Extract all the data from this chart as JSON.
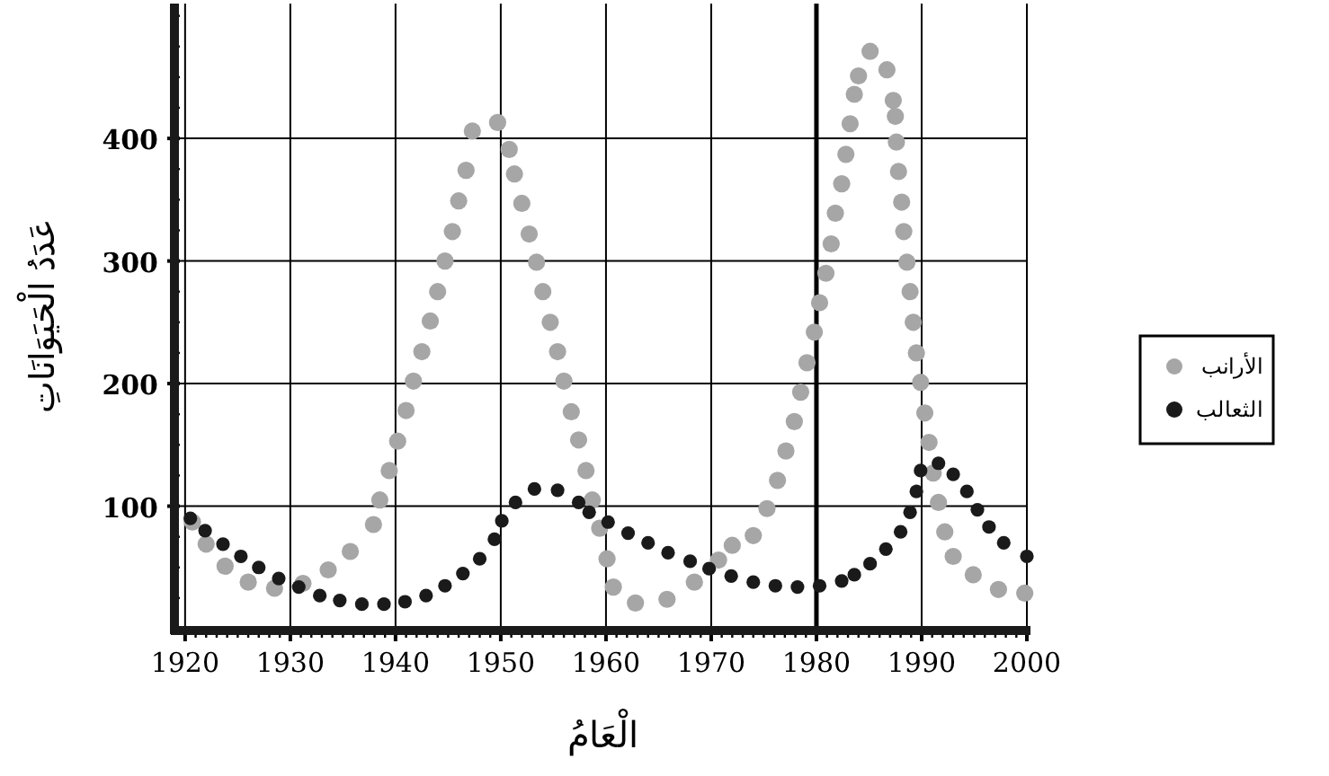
{
  "chart_data": {
    "type": "scatter",
    "xlabel": "الْعَامُ",
    "ylabel": "عَدَدُ الْحَيَوَانَاتِ",
    "xlim": [
      1919.5,
      2000
    ],
    "ylim": [
      0,
      510
    ],
    "grid": true,
    "legend": "right",
    "marker": "circle",
    "xticks": [
      1920,
      {
        "value": 1921,
        "label": null
      },
      {
        "value": 1922,
        "label": null
      },
      {
        "value": 1923,
        "label": null
      },
      {
        "value": 1924,
        "label": null
      },
      {
        "value": 1925,
        "label": null
      },
      {
        "value": 1926,
        "label": null
      },
      {
        "value": 1927,
        "label": null
      },
      {
        "value": 1928,
        "label": null
      },
      {
        "value": 1929,
        "label": null
      },
      1930,
      {
        "value": 1931,
        "label": null
      },
      {
        "value": 1932,
        "label": null
      },
      {
        "value": 1933,
        "label": null
      },
      {
        "value": 1934,
        "label": null
      },
      {
        "value": 1935,
        "label": null
      },
      {
        "value": 1936,
        "label": null
      },
      {
        "value": 1937,
        "label": null
      },
      {
        "value": 1938,
        "label": null
      },
      {
        "value": 1939,
        "label": null
      },
      1940,
      {
        "value": 1941,
        "label": null
      },
      {
        "value": 1942,
        "label": null
      },
      {
        "value": 1943,
        "label": null
      },
      {
        "value": 1944,
        "label": null
      },
      {
        "value": 1945,
        "label": null
      },
      {
        "value": 1946,
        "label": null
      },
      {
        "value": 1947,
        "label": null
      },
      {
        "value": 1948,
        "label": null
      },
      {
        "value": 1949,
        "label": null
      },
      1950,
      {
        "value": 1951,
        "label": null
      },
      {
        "value": 1952,
        "label": null
      },
      {
        "value": 1953,
        "label": null
      },
      {
        "value": 1954,
        "label": null
      },
      {
        "value": 1955,
        "label": null
      },
      {
        "value": 1956,
        "label": null
      },
      {
        "value": 1957,
        "label": null
      },
      {
        "value": 1958,
        "label": null
      },
      {
        "value": 1959,
        "label": null
      },
      1960,
      {
        "value": 1961,
        "label": null
      },
      {
        "value": 1962,
        "label": null
      },
      {
        "value": 1963,
        "label": null
      },
      {
        "value": 1964,
        "label": null
      },
      {
        "value": 1965,
        "label": null
      },
      {
        "value": 1966,
        "label": null
      },
      {
        "value": 1967,
        "label": null
      },
      {
        "value": 1968,
        "label": null
      },
      {
        "value": 1969,
        "label": null
      },
      1970,
      {
        "value": 1971,
        "label": null
      },
      {
        "value": 1972,
        "label": null
      },
      {
        "value": 1973,
        "label": null
      },
      {
        "value": 1974,
        "label": null
      },
      {
        "value": 1975,
        "label": null
      },
      {
        "value": 1976,
        "label": null
      },
      {
        "value": 1977,
        "label": null
      },
      {
        "value": 1978,
        "label": null
      },
      {
        "value": 1979,
        "label": null
      },
      1980,
      {
        "value": 1981,
        "label": null
      },
      {
        "value": 1982,
        "label": null
      },
      {
        "value": 1983,
        "label": null
      },
      {
        "value": 1984,
        "label": null
      },
      {
        "value": 1985,
        "label": null
      },
      {
        "value": 1986,
        "label": null
      },
      {
        "value": 1987,
        "label": null
      },
      {
        "value": 1988,
        "label": null
      },
      {
        "value": 1989,
        "label": null
      },
      1990,
      {
        "value": 1991,
        "label": null
      },
      {
        "value": 1992,
        "label": null
      },
      {
        "value": 1993,
        "label": null
      },
      {
        "value": 1994,
        "label": null
      },
      {
        "value": 1995,
        "label": null
      },
      {
        "value": 1996,
        "label": null
      },
      {
        "value": 1997,
        "label": null
      },
      {
        "value": 1998,
        "label": null
      },
      {
        "value": 1999,
        "label": null
      },
      2000
    ],
    "yticks": [
      {
        "value": 25,
        "label": null
      },
      {
        "value": 50,
        "label": null
      },
      {
        "value": 75,
        "label": null
      },
      100,
      {
        "value": 125,
        "label": null
      },
      {
        "value": 150,
        "label": null
      },
      {
        "value": 175,
        "label": null
      },
      200,
      {
        "value": 225,
        "label": null
      },
      {
        "value": 250,
        "label": null
      },
      {
        "value": 275,
        "label": null
      },
      300,
      {
        "value": 325,
        "label": null
      },
      {
        "value": 350,
        "label": null
      },
      {
        "value": 375,
        "label": null
      },
      400,
      {
        "value": 425,
        "label": null
      },
      {
        "value": 450,
        "label": null
      },
      {
        "value": 475,
        "label": null
      },
      {
        "value": 500,
        "label": null
      }
    ],
    "ref_lines": [
      {
        "axis": "x",
        "value": 1980,
        "color": "#000000"
      }
    ],
    "series": [
      {
        "name": "الأرانب",
        "color": "#a6a6a6",
        "x": [
          1920.7,
          1922,
          1923.8,
          1926,
          1928.5,
          1931.2,
          1933.6,
          1935.7,
          1937.9,
          1938.5,
          1939.4,
          1940.2,
          1941,
          1941.7,
          1942.5,
          1943.3,
          1944,
          1944.7,
          1945.4,
          1946,
          1946.7,
          1947.3,
          1949.7,
          1950.8,
          1951.3,
          1952,
          1952.7,
          1953.4,
          1954,
          1954.7,
          1955.4,
          1956,
          1956.7,
          1957.4,
          1958.1,
          1958.7,
          1959.4,
          1960.1,
          1960.7,
          1962.8,
          1965.8,
          1968.4,
          1970.7,
          1972,
          1974,
          1975.3,
          1976.3,
          1977.1,
          1977.9,
          1978.5,
          1979.1,
          1979.8,
          1980.3,
          1980.9,
          1981.4,
          1981.8,
          1982.4,
          1982.8,
          1983.2,
          1983.6,
          1984,
          1985.1,
          1986.7,
          1987.3,
          1987.5,
          1987.6,
          1987.8,
          1988.1,
          1988.3,
          1988.6,
          1988.9,
          1989.2,
          1989.5,
          1989.9,
          1990.3,
          1990.7,
          1991.1,
          1991.6,
          1992.2,
          1993,
          1994.9,
          1997.3,
          1999.8
        ],
        "values": [
          87,
          69,
          51,
          38,
          33,
          37,
          48,
          63,
          85,
          105,
          129,
          153,
          178,
          202,
          226,
          251,
          275,
          300,
          324,
          349,
          374,
          406,
          413,
          391,
          371,
          347,
          322,
          299,
          275,
          250,
          226,
          202,
          177,
          154,
          129,
          105,
          82,
          57,
          34,
          21,
          24,
          38,
          56,
          68,
          76,
          98,
          121,
          145,
          169,
          193,
          217,
          242,
          266,
          290,
          314,
          339,
          363,
          387,
          412,
          436,
          451,
          471,
          456,
          431,
          418,
          397,
          373,
          348,
          324,
          299,
          275,
          250,
          225,
          201,
          176,
          152,
          127,
          103,
          79,
          59,
          44,
          32,
          29
        ]
      },
      {
        "name": "الثعالب",
        "color": "#1a1a1a",
        "x": [
          1920.5,
          1921.9,
          1923.6,
          1925.3,
          1927,
          1928.9,
          1930.8,
          1932.8,
          1934.7,
          1936.8,
          1938.9,
          1940.9,
          1942.9,
          1944.7,
          1946.4,
          1948,
          1949.4,
          1950.1,
          1951.4,
          1953.2,
          1955.4,
          1957.4,
          1958.4,
          1960.2,
          1962.1,
          1964,
          1965.9,
          1968,
          1969.8,
          1971.9,
          1974,
          1976.1,
          1978.2,
          1980.3,
          1982.4,
          1983.6,
          1985.1,
          1986.6,
          1988,
          1988.9,
          1989.5,
          1989.9,
          1991.6,
          1993,
          1994.3,
          1995.3,
          1996.4,
          1997.8,
          2000
        ],
        "values": [
          90,
          80,
          69,
          59,
          50,
          41,
          34,
          27,
          23,
          20,
          20,
          22,
          27,
          35,
          45,
          57,
          73,
          88,
          103,
          114,
          113,
          103,
          95,
          87,
          78,
          70,
          62,
          55,
          49,
          43,
          38,
          35,
          34,
          35,
          39,
          44,
          53,
          65,
          79,
          95,
          112,
          129,
          135,
          126,
          112,
          97,
          83,
          70,
          59
        ]
      }
    ]
  }
}
